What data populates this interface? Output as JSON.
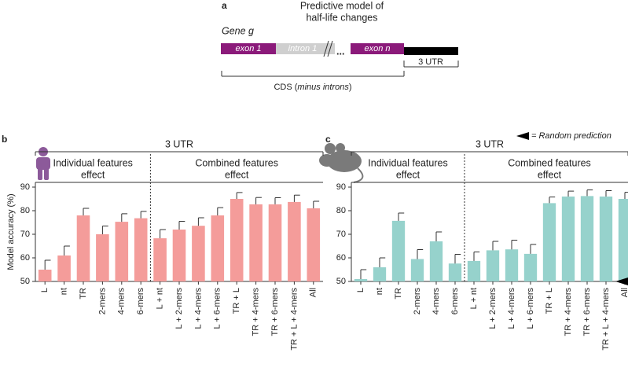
{
  "diagram": {
    "panel": "a",
    "title": [
      "Predictive model of",
      "half-life changes"
    ],
    "gene": "Gene g",
    "exon1": "exon 1",
    "intron1": "intron 1",
    "ellipsis": "...",
    "exonn": "exon n",
    "utr": "3 UTR",
    "cds": [
      "CDS (",
      "minus introns",
      ")"
    ]
  },
  "legend": {
    "random": "= Random prediction"
  },
  "chart_data": [
    {
      "type": "bar",
      "panel": "b",
      "header": "3 UTR",
      "ylabel": "Model accuracy (%)",
      "color": "#f49c9a",
      "groups": [
        {
          "title": [
            "Individual features",
            "effect"
          ],
          "categories": [
            "L",
            "nt",
            "TR",
            "2-mers",
            "4-mers",
            "6-mers"
          ]
        },
        {
          "title": [
            "Combined features",
            "effect"
          ],
          "categories": [
            "L + nt",
            "L + 2-mers",
            "L + 4-mers",
            "L + 6-mers",
            "TR + L",
            "TR + 4-mers",
            "TR + 6-mers",
            "TR + L + 4-mers",
            "All"
          ]
        }
      ],
      "values": [
        55,
        61,
        78,
        70,
        75.3,
        76.8,
        68.3,
        72,
        73.6,
        78,
        85,
        82.7,
        82.7,
        83.7,
        81
      ],
      "errors": [
        4,
        4,
        3,
        3.5,
        3.4,
        2.9,
        3.7,
        3.5,
        3.4,
        3.3,
        2.7,
        2.9,
        2.8,
        2.9,
        3
      ],
      "ylim": [
        50,
        92
      ],
      "yticks": [
        50,
        60,
        70,
        80,
        90
      ]
    },
    {
      "type": "bar",
      "panel": "c",
      "header": "3 UTR",
      "color": "#96d2cc",
      "random_prediction": 50,
      "groups": [
        {
          "title": [
            "Individual features",
            "effect"
          ],
          "categories": [
            "L",
            "nt",
            "TR",
            "2-mers",
            "4-mers",
            "6-mers"
          ]
        },
        {
          "title": [
            "Combined features",
            "effect"
          ],
          "categories": [
            "L + nt",
            "L + 2-mers",
            "L + 4-mers",
            "L + 6-mers",
            "TR + L",
            "TR + 4-mers",
            "TR + 6-mers",
            "TR + L + 4-mers",
            "All"
          ]
        }
      ],
      "values": [
        51,
        56,
        75.7,
        59.5,
        67,
        57.6,
        58.7,
        63.2,
        63.6,
        61.7,
        83.2,
        86,
        86.2,
        86,
        85
      ],
      "errors": [
        4,
        4,
        3.3,
        4,
        4,
        3.9,
        3.8,
        3.8,
        3.9,
        4,
        2.6,
        2.3,
        2.6,
        2.5,
        2.8
      ],
      "ylim": [
        50,
        92
      ],
      "yticks": [
        50,
        60,
        70,
        80,
        90
      ]
    }
  ]
}
